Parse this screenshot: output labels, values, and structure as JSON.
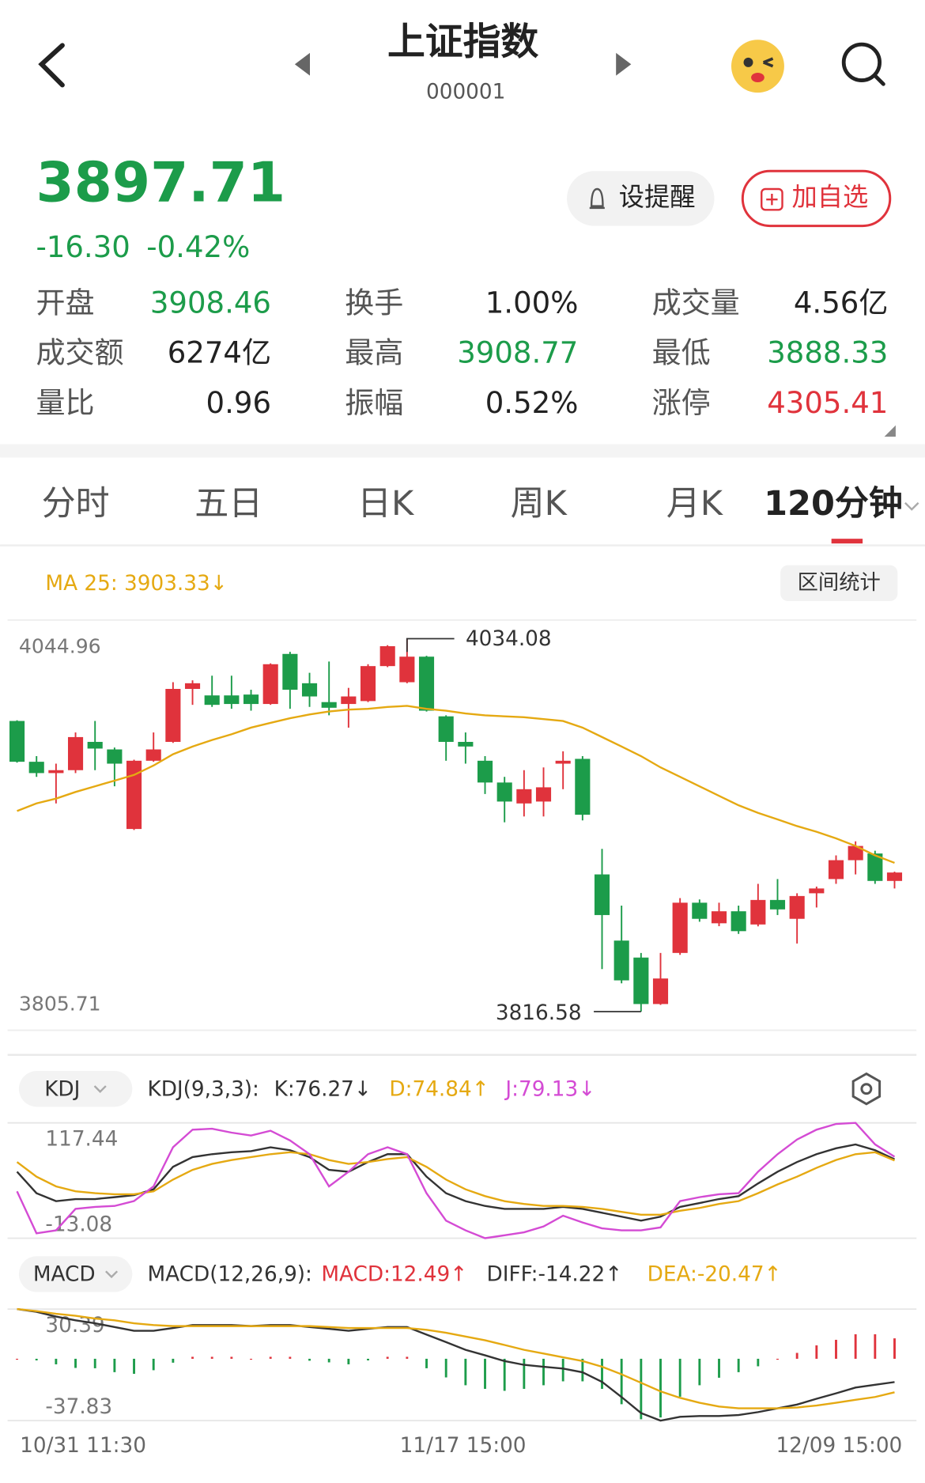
{
  "header": {
    "title": "上证指数",
    "code": "000001"
  },
  "quote": {
    "price": "3897.71",
    "change": "-16.30",
    "change_pct": "-0.42%",
    "color": "#1c9c4a"
  },
  "buttons": {
    "alert": "设提醒",
    "add": "加自选",
    "range_stats": "区间统计"
  },
  "stats": [
    {
      "label": "开盘",
      "value": "3908.46",
      "color": "#1c9c4a"
    },
    {
      "label": "换手",
      "value": "1.00%",
      "color": "#222222"
    },
    {
      "label": "成交量",
      "value": "4.56亿",
      "color": "#222222"
    },
    {
      "label": "成交额",
      "value": "6274亿",
      "color": "#222222"
    },
    {
      "label": "最高",
      "value": "3908.77",
      "color": "#1c9c4a"
    },
    {
      "label": "最低",
      "value": "3888.33",
      "color": "#1c9c4a"
    },
    {
      "label": "量比",
      "value": "0.96",
      "color": "#222222"
    },
    {
      "label": "振幅",
      "value": "0.52%",
      "color": "#222222"
    },
    {
      "label": "涨停",
      "value": "4305.41",
      "color": "#e0333c"
    }
  ],
  "tabs": [
    "分时",
    "五日",
    "日K",
    "周K",
    "月K",
    "120分钟"
  ],
  "active_tab": 5,
  "chart_data": [
    {
      "type": "candlestick",
      "up_color": "#e0333c",
      "down_color": "#1c9c4a",
      "open": [
        3986.1,
        3962.3,
        3955.7,
        3957.4,
        3973.9,
        3969.5,
        3923.1,
        3962.9,
        3973.9,
        4004.8,
        4001.0,
        4001.0,
        4001.5,
        3996.0,
        4025.2,
        4008.1,
        3997.1,
        3996.0,
        3997.7,
        4018.1,
        4008.7,
        4023.6,
        3988.8,
        3973.9,
        3962.9,
        3950.2,
        3938.0,
        3939.1,
        3961.2,
        3964.0,
        3896.6,
        3858.0,
        3848.1,
        3821.0,
        3850.8,
        3880.1,
        3868.1,
        3875.1,
        3867.4,
        3881.7,
        3870.7,
        3885.6,
        3893.9,
        3904.9,
        3908.8,
        3892.8
      ],
      "high": [
        3986.5,
        3965.6,
        3961.2,
        3979.4,
        3986.1,
        3970.6,
        3963.5,
        3979.4,
        4008.7,
        4009.8,
        4012.5,
        4012.5,
        4004.3,
        4019.7,
        4026.4,
        4014.2,
        4020.8,
        4005.4,
        4019.2,
        4030.3,
        4034.08,
        4024.1,
        3989.4,
        3979.4,
        3965.6,
        3953.5,
        3957.4,
        3959.0,
        3968.4,
        3965.6,
        3911.5,
        3878.4,
        3850.8,
        3850.8,
        3882.8,
        3882.0,
        3880.1,
        3878.4,
        3891.1,
        3893.9,
        3885.6,
        3889.5,
        3907.7,
        3915.9,
        3910.4,
        3898.2
      ],
      "low": [
        3961.8,
        3953.5,
        3938.0,
        3955.7,
        3957.4,
        3948.0,
        3922.5,
        3962.3,
        3973.3,
        3995.5,
        3994.3,
        3993.2,
        3992.1,
        3995.5,
        3993.2,
        3994.3,
        3989.4,
        3982.2,
        3997.1,
        4017.5,
        4008.1,
        3991.6,
        3962.9,
        3961.2,
        3943.5,
        3927.0,
        3930.4,
        3930.4,
        3946.3,
        3928.1,
        3841.4,
        3833.1,
        3816.58,
        3820.5,
        3849.7,
        3869.0,
        3866.4,
        3861.9,
        3866.3,
        3872.9,
        3856.3,
        3877.3,
        3891.1,
        3896.6,
        3891.1,
        3888.4
      ],
      "close": [
        3962.3,
        3955.7,
        3957.4,
        3976.7,
        3970.0,
        3961.2,
        3962.9,
        3969.5,
        4004.8,
        4008.1,
        3995.5,
        3996.0,
        3996.0,
        4019.2,
        4004.3,
        4000.4,
        3993.8,
        4000.4,
        4018.1,
        4029.7,
        4023.6,
        3992.1,
        3973.9,
        3971.2,
        3950.2,
        3939.1,
        3946.3,
        3947.4,
        3962.9,
        3931.4,
        3872.9,
        3834.8,
        3821.0,
        3835.9,
        3880.1,
        3870.7,
        3875.1,
        3863.5,
        3881.7,
        3876.2,
        3884.0,
        3888.4,
        3904.9,
        3913.2,
        3892.8,
        3897.71
      ],
      "ma": {
        "name": "MA 25: 3903.33↓",
        "color": "#e5a912",
        "values": [
          3933.6,
          3938.0,
          3940.8,
          3944.7,
          3948.0,
          3951.3,
          3954.6,
          3960.1,
          3966.7,
          3971.2,
          3975.0,
          3978.3,
          3982.2,
          3985.0,
          3987.7,
          3989.9,
          3991.6,
          3992.7,
          3993.2,
          3994.3,
          3994.9,
          3993.2,
          3992.1,
          3990.5,
          3989.4,
          3988.8,
          3988.3,
          3987.2,
          3986.1,
          3982.2,
          3976.7,
          3971.2,
          3965.6,
          3959.0,
          3953.5,
          3948.0,
          3942.4,
          3936.9,
          3932.5,
          3928.7,
          3924.8,
          3921.5,
          3917.6,
          3913.2,
          3907.7,
          3903.33
        ]
      },
      "ylim": [
        3805.71,
        4044.96
      ],
      "yticks": [
        4044.96,
        3805.71
      ],
      "high_label": 4034.08,
      "low_label": 3816.58,
      "x_labels": [
        "10/31 11:30",
        "11/17 15:00",
        "12/09 15:00"
      ]
    },
    {
      "type": "line",
      "title": "KDJ",
      "params": "KDJ(9,3,3):",
      "series": [
        {
          "name": "K:76.27↓",
          "color": "#333333",
          "values": [
            62.1,
            37.8,
            28.9,
            31.2,
            31.2,
            33.4,
            35.6,
            42.2,
            67.7,
            78.7,
            82.0,
            84.2,
            85.4,
            89.8,
            86.5,
            78.7,
            64.3,
            62.1,
            73.2,
            82.0,
            82.0,
            56.6,
            37.8,
            28.9,
            23.4,
            20.1,
            20.1,
            20.1,
            22.3,
            20.1,
            15.7,
            11.3,
            6.8,
            11.3,
            22.3,
            26.7,
            31.2,
            34.5,
            48.9,
            62.1,
            73.2,
            82.0,
            88.7,
            93.1,
            86.5,
            76.27
          ]
        },
        {
          "name": "D:74.84↑",
          "color": "#e5a912",
          "values": [
            73.2,
            56.6,
            45.5,
            40.0,
            37.8,
            36.7,
            36.7,
            40.0,
            53.3,
            64.3,
            71.0,
            75.4,
            78.7,
            82.0,
            84.2,
            82.0,
            75.4,
            71.0,
            73.2,
            76.5,
            78.7,
            67.7,
            53.3,
            42.2,
            34.5,
            28.9,
            25.6,
            23.4,
            23.4,
            22.3,
            20.1,
            16.8,
            13.5,
            13.5,
            17.9,
            21.2,
            25.6,
            28.9,
            37.8,
            47.8,
            56.6,
            66.5,
            75.4,
            82.0,
            84.2,
            74.84
          ]
        },
        {
          "name": "J:79.13↓",
          "color": "#d44bd4",
          "values": [
            40.0,
            -7.5,
            -4.2,
            20.1,
            22.3,
            23.4,
            29.0,
            45.5,
            89.8,
            109.7,
            110.8,
            106.4,
            103.1,
            108.6,
            97.5,
            82.0,
            45.5,
            62.1,
            82.0,
            89.8,
            82.0,
            37.8,
            6.8,
            -4.2,
            -13.08,
            -9.8,
            -6.4,
            0.2,
            12.4,
            4.7,
            -2.0,
            -4.2,
            -4.2,
            -0.9,
            29.0,
            33.4,
            36.7,
            37.8,
            62.1,
            82.0,
            98.6,
            109.7,
            116.3,
            117.44,
            93.1,
            79.13
          ]
        }
      ],
      "ylim": [
        -13.08,
        117.44
      ],
      "yticks": [
        117.44,
        -13.08
      ]
    },
    {
      "type": "macd",
      "title": "MACD",
      "params": "MACD(12,26,9):",
      "series": [
        {
          "name": "MACD:12.49↑",
          "type": "bar",
          "color": "#e0333c",
          "down_color": "#1c9c4a",
          "values": [
            0,
            -1.0,
            -3.4,
            -5.6,
            -5.8,
            -8.2,
            -9.2,
            -7.0,
            -2.4,
            1.2,
            1.2,
            1.2,
            0,
            1.2,
            1.2,
            -1.2,
            -2.2,
            -3.4,
            -1.0,
            1.2,
            1.2,
            -5.8,
            -11.4,
            -16.2,
            -18.4,
            -19.6,
            -18.4,
            -16.2,
            -13.8,
            -13.8,
            -18.4,
            -27.8,
            -37.0,
            -35.9,
            -23.2,
            -16.2,
            -11.6,
            -8.2,
            -4.6,
            0,
            3.6,
            8.2,
            11.6,
            15.0,
            15.0,
            12.49
          ]
        },
        {
          "name": "DIFF:-14.22↑",
          "type": "line",
          "color": "#333333",
          "values": [
            30.39,
            28.7,
            25.8,
            23.5,
            21.7,
            19.4,
            17.1,
            17.1,
            18.8,
            20.6,
            20.6,
            20.6,
            20.0,
            20.6,
            20.6,
            19.4,
            18.3,
            17.1,
            18.3,
            19.4,
            19.4,
            14.8,
            10.2,
            5.5,
            2.1,
            -1.4,
            -3.7,
            -4.9,
            -6.0,
            -8.3,
            -14.1,
            -23.4,
            -33.2,
            -37.83,
            -35.5,
            -35.0,
            -35.0,
            -34.4,
            -32.6,
            -30.3,
            -28.0,
            -24.5,
            -21.1,
            -17.6,
            -15.9,
            -14.22
          ]
        },
        {
          "name": "DEA:-20.47↑",
          "type": "line",
          "color": "#e5a912",
          "values": [
            30.39,
            29.2,
            27.5,
            26.3,
            24.6,
            23.5,
            21.7,
            20.6,
            20.0,
            20.0,
            20.0,
            20.0,
            20.0,
            20.0,
            20.0,
            20.0,
            19.4,
            18.8,
            18.8,
            18.8,
            18.8,
            17.7,
            15.9,
            13.6,
            11.3,
            8.4,
            5.5,
            3.2,
            0.9,
            -1.4,
            -4.9,
            -9.5,
            -14.7,
            -19.9,
            -23.9,
            -26.9,
            -29.2,
            -30.3,
            -30.3,
            -30.3,
            -29.8,
            -28.6,
            -26.9,
            -25.1,
            -23.4,
            -20.47
          ]
        }
      ],
      "ylim": [
        -37.83,
        30.39
      ],
      "yticks": [
        30.39,
        -37.83
      ]
    }
  ]
}
